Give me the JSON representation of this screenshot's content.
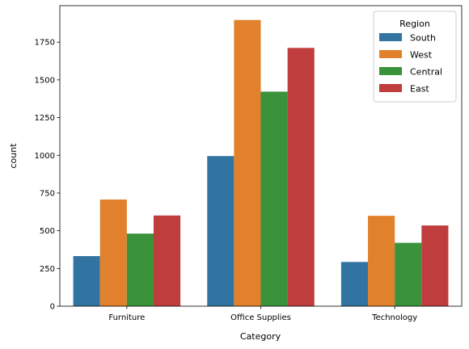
{
  "chart_data": {
    "type": "bar",
    "categories": [
      "Furniture",
      "Office Supplies",
      "Technology"
    ],
    "series": [
      {
        "name": "South",
        "color": "#3274a1",
        "values": [
          332,
          995,
          293
        ]
      },
      {
        "name": "West",
        "color": "#e1812c",
        "values": [
          707,
          1897,
          599
        ]
      },
      {
        "name": "Central",
        "color": "#3a923a",
        "values": [
          481,
          1422,
          420
        ]
      },
      {
        "name": "East",
        "color": "#c03d3e",
        "values": [
          601,
          1712,
          535
        ]
      }
    ],
    "title": "",
    "xlabel": "Category",
    "ylabel": "count",
    "ylim": [
      0,
      1992
    ],
    "yticks": [
      0,
      250,
      500,
      750,
      1000,
      1250,
      1500,
      1750
    ],
    "legend": {
      "title": "Region",
      "placement": "top-right"
    },
    "grid": false
  }
}
